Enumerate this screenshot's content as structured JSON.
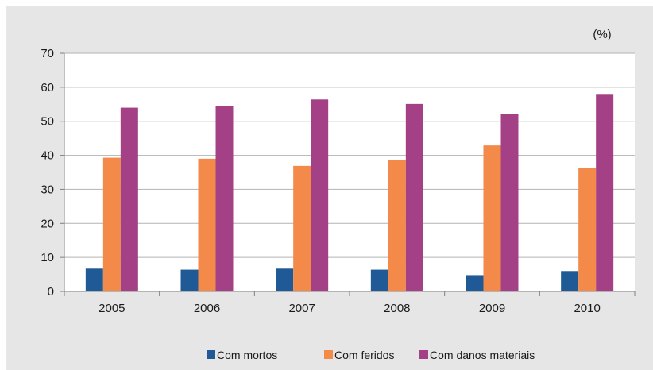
{
  "chart_data": {
    "type": "bar",
    "unit_label": "(%)",
    "categories": [
      "2005",
      "2006",
      "2007",
      "2008",
      "2009",
      "2010"
    ],
    "series": [
      {
        "name": "Com mortos",
        "color": "#1f5a96",
        "values": [
          6.7,
          6.4,
          6.7,
          6.4,
          4.8,
          6.0
        ]
      },
      {
        "name": "Com feridos",
        "color": "#f38a4a",
        "values": [
          39.3,
          39.0,
          36.9,
          38.5,
          42.9,
          36.4
        ]
      },
      {
        "name": "Com danos materiais",
        "color": "#a44085",
        "values": [
          54.0,
          54.6,
          56.4,
          55.1,
          52.2,
          57.8
        ]
      }
    ],
    "ylim": [
      0,
      70
    ],
    "yticks": [
      0,
      10,
      20,
      30,
      40,
      50,
      60,
      70
    ],
    "grid": true,
    "legend_position": "bottom"
  }
}
